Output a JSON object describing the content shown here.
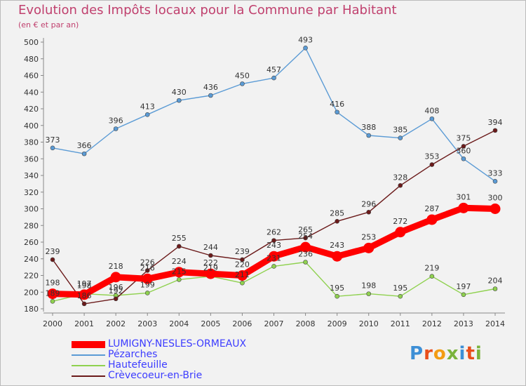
{
  "title": "Evolution des Impôts locaux pour la Commune par Habitant",
  "subtitle": "(en € et par an)",
  "logo_text": "Proxiti",
  "chart_data": {
    "type": "line",
    "x": [
      "2000",
      "2001",
      "2002",
      "2003",
      "2004",
      "2005",
      "2006",
      "2007",
      "2008",
      "2009",
      "2010",
      "2011",
      "2012",
      "2013",
      "2014"
    ],
    "ylim": [
      180,
      500
    ],
    "yticks": [
      180,
      200,
      220,
      240,
      260,
      280,
      300,
      320,
      340,
      360,
      380,
      400,
      420,
      440,
      460,
      480,
      500
    ],
    "grid": false,
    "legend_position": "bottom-left",
    "series": [
      {
        "name": "LUMIGNY-NESLES-ORMEAUX",
        "color": "#ff0000",
        "values": [
          198,
          197,
          218,
          216,
          224,
          222,
          220,
          243,
          254,
          243,
          253,
          272,
          287,
          301,
          300
        ]
      },
      {
        "name": "Pézarches",
        "color": "#5b9bd5",
        "values": [
          373,
          366,
          396,
          413,
          430,
          436,
          450,
          457,
          493,
          416,
          388,
          385,
          408,
          360,
          333
        ]
      },
      {
        "name": "Hautefeuille",
        "color": "#8fd14f",
        "values": [
          189,
          198,
          196,
          199,
          215,
          219,
          211,
          231,
          236,
          195,
          198,
          195,
          219,
          197,
          204
        ]
      },
      {
        "name": "Crèvecoeur-en-Brie",
        "color": "#6b1a1a",
        "values": [
          239,
          186,
          192,
          226,
          255,
          244,
          239,
          262,
          265,
          285,
          296,
          328,
          353,
          375,
          394
        ]
      }
    ]
  }
}
